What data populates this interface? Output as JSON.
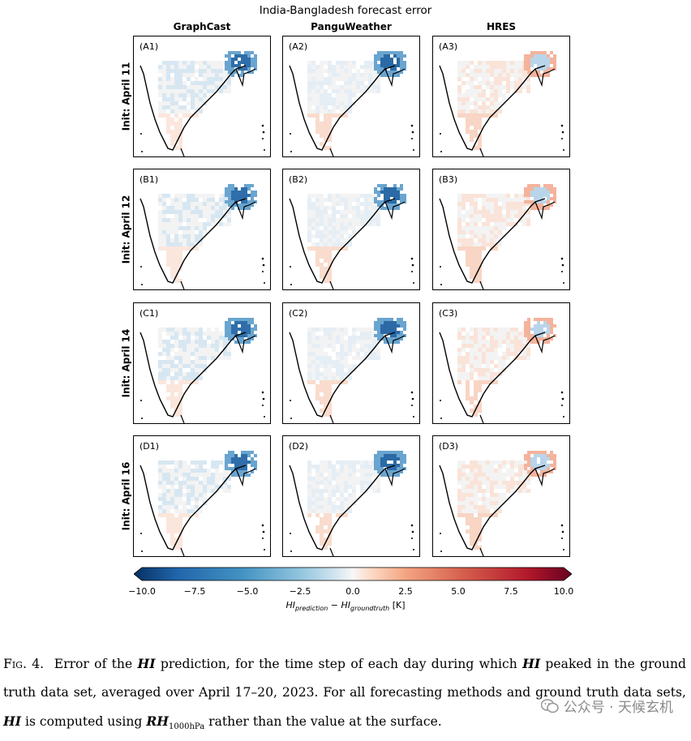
{
  "figure": {
    "suptitle": "India-Bangladesh forecast error",
    "columns": [
      "GraphCast",
      "PanguWeather",
      "HRES"
    ],
    "rows": [
      "Init: April 11",
      "Init: April 12",
      "Init: April 14",
      "Init: April 16"
    ],
    "panels": [
      [
        "(A1)",
        "(A2)",
        "(A3)"
      ],
      [
        "(B1)",
        "(B2)",
        "(B3)"
      ],
      [
        "(C1)",
        "(C2)",
        "(C3)"
      ],
      [
        "(D1)",
        "(D2)",
        "(D3)"
      ]
    ],
    "colorbar": {
      "colormap": "RdBu_r",
      "ticks": [
        "−10.0",
        "−7.5",
        "−5.0",
        "−2.5",
        "0.0",
        "2.5",
        "5.0",
        "7.5",
        "10.0"
      ],
      "range": [
        -10,
        10
      ],
      "label": "HI_prediction − HI_groundtruth [K]",
      "label_main1": "HI",
      "label_sub1": "prediction",
      "label_mid": " − HI",
      "label_sub2": "groundtruth",
      "label_unit": " [K]"
    },
    "colors": {
      "negative": "#2166ac",
      "positive": "#d6604d",
      "neutral": "#f7f7f7"
    }
  },
  "caption": {
    "fig_label": "Fig. 4.",
    "t1": "Error of the ",
    "hi": "HI",
    "t2": " prediction, for the time step of each day during which ",
    "t3": " peaked in the ground truth data set, averaged over April 17–20, 2023. For all forecasting methods and ground truth data sets, ",
    "t4": " is computed using ",
    "rh": "RH",
    "rh_sub": "1000hPa",
    "t5": " rather than the value at the surface."
  },
  "watermark": {
    "text": "公众号 · 天候玄机"
  }
}
